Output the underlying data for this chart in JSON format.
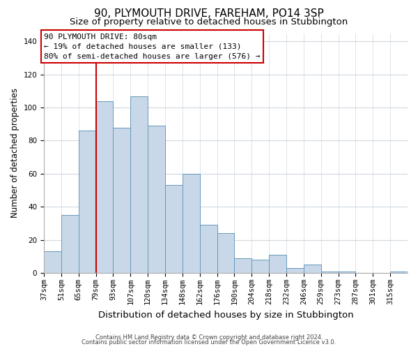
{
  "title": "90, PLYMOUTH DRIVE, FAREHAM, PO14 3SP",
  "subtitle": "Size of property relative to detached houses in Stubbington",
  "xlabel": "Distribution of detached houses by size in Stubbington",
  "ylabel": "Number of detached properties",
  "bar_labels": [
    "37sqm",
    "51sqm",
    "65sqm",
    "79sqm",
    "93sqm",
    "107sqm",
    "120sqm",
    "134sqm",
    "148sqm",
    "162sqm",
    "176sqm",
    "190sqm",
    "204sqm",
    "218sqm",
    "232sqm",
    "246sqm",
    "259sqm",
    "273sqm",
    "287sqm",
    "301sqm",
    "315sqm"
  ],
  "bar_values": [
    13,
    35,
    86,
    104,
    88,
    107,
    89,
    53,
    60,
    29,
    24,
    9,
    8,
    11,
    3,
    5,
    1,
    1,
    0,
    0,
    1
  ],
  "bar_color": "#c8d8e8",
  "bar_edge_color": "#6699bb",
  "vline_x": 3,
  "vline_color": "#cc0000",
  "ylim": [
    0,
    145
  ],
  "yticks": [
    0,
    20,
    40,
    60,
    80,
    100,
    120,
    140
  ],
  "annotation_title": "90 PLYMOUTH DRIVE: 80sqm",
  "annotation_line1": "← 19% of detached houses are smaller (133)",
  "annotation_line2": "80% of semi-detached houses are larger (576) →",
  "annotation_box_color": "#ffffff",
  "annotation_box_edge": "#cc0000",
  "footer1": "Contains HM Land Registry data © Crown copyright and database right 2024.",
  "footer2": "Contains public sector information licensed under the Open Government Licence v3.0.",
  "bg_color": "#ffffff",
  "title_fontsize": 11,
  "subtitle_fontsize": 9.5,
  "ylabel_fontsize": 8.5,
  "xlabel_fontsize": 9.5,
  "tick_fontsize": 7.5,
  "footer_fontsize": 6.0,
  "annot_fontsize": 8.0,
  "grid_color": "#d0d8e0",
  "spine_color": "#aaaaaa"
}
